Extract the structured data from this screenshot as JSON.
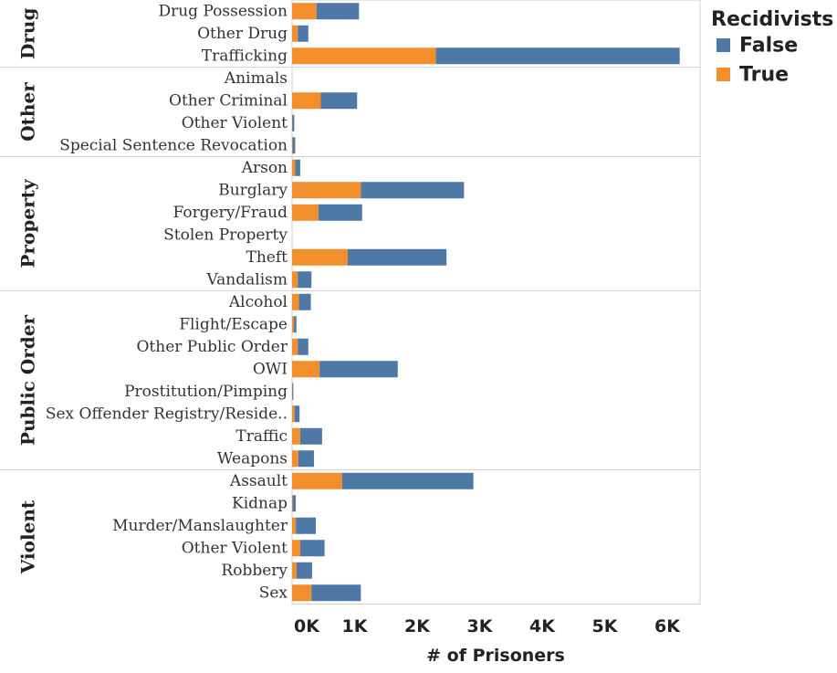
{
  "chart_data": {
    "type": "bar",
    "orientation": "horizontal",
    "stacked": true,
    "xlabel": "# of Prisoners",
    "xlim": [
      0,
      6500
    ],
    "x_ticks": [
      0,
      1000,
      2000,
      3000,
      4000,
      5000,
      6000
    ],
    "x_tick_labels": [
      "0K",
      "1K",
      "2K",
      "3K",
      "4K",
      "5K",
      "6K"
    ],
    "legend": {
      "title": "Recidivists",
      "placement": "top-right",
      "entries": [
        {
          "label": "False",
          "color": "#4e79a7"
        },
        {
          "label": "True",
          "color": "#f28e2b"
        }
      ]
    },
    "series": [
      {
        "name": "True",
        "color": "#f28e2b"
      },
      {
        "name": "False",
        "color": "#4e79a7"
      }
    ],
    "groups": [
      {
        "name": "Drug",
        "rows": [
          {
            "label": "Drug Possession",
            "true": 390,
            "false": 680
          },
          {
            "label": "Other Drug",
            "true": 90,
            "false": 170
          },
          {
            "label": "Trafficking",
            "true": 2300,
            "false": 3900
          }
        ]
      },
      {
        "name": "Other",
        "rows": [
          {
            "label": "Animals",
            "true": 0,
            "false": 0
          },
          {
            "label": "Other Criminal",
            "true": 460,
            "false": 580
          },
          {
            "label": "Other Violent",
            "true": 5,
            "false": 30
          },
          {
            "label": "Special Sentence Revocation",
            "true": 10,
            "false": 40
          }
        ]
      },
      {
        "name": "Property",
        "rows": [
          {
            "label": "Arson",
            "true": 50,
            "false": 80
          },
          {
            "label": "Burglary",
            "true": 1100,
            "false": 1650
          },
          {
            "label": "Forgery/Fraud",
            "true": 420,
            "false": 700
          },
          {
            "label": "Stolen Property",
            "true": 0,
            "false": 0
          },
          {
            "label": "Theft",
            "true": 890,
            "false": 1580
          },
          {
            "label": "Vandalism",
            "true": 90,
            "false": 220
          }
        ]
      },
      {
        "name": "Public Order",
        "rows": [
          {
            "label": "Alcohol",
            "true": 110,
            "false": 190
          },
          {
            "label": "Flight/Escape",
            "true": 30,
            "false": 40
          },
          {
            "label": "Other Public Order",
            "true": 90,
            "false": 170
          },
          {
            "label": "OWI",
            "true": 440,
            "false": 1250
          },
          {
            "label": "Prostitution/Pimping",
            "true": 5,
            "false": 15
          },
          {
            "label": "Sex Offender Registry/Reside..",
            "true": 40,
            "false": 80
          },
          {
            "label": "Traffic",
            "true": 130,
            "false": 350
          },
          {
            "label": "Weapons",
            "true": 100,
            "false": 250
          }
        ]
      },
      {
        "name": "Violent",
        "rows": [
          {
            "label": "Assault",
            "true": 800,
            "false": 2100
          },
          {
            "label": "Kidnap",
            "true": 10,
            "false": 50
          },
          {
            "label": "Murder/Manslaughter",
            "true": 60,
            "false": 320
          },
          {
            "label": "Other Violent",
            "true": 130,
            "false": 390
          },
          {
            "label": "Robbery",
            "true": 70,
            "false": 250
          },
          {
            "label": "Sex",
            "true": 310,
            "false": 790
          }
        ]
      }
    ]
  }
}
